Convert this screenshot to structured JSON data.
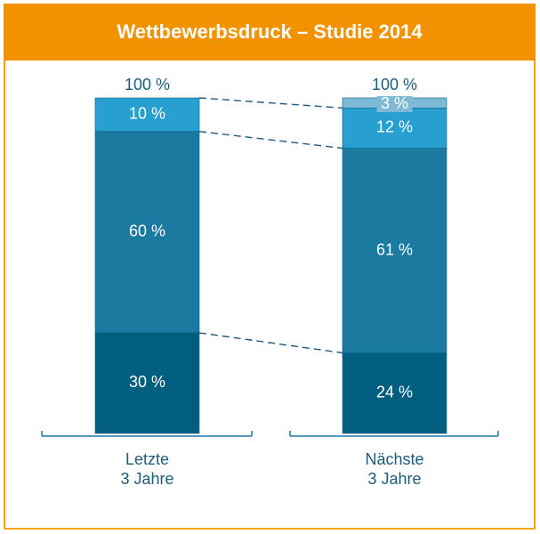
{
  "chart_data": {
    "type": "bar",
    "stacked": true,
    "title": "Wettbewerbsdruck – Studie 2014",
    "categories": [
      {
        "line1": "Letzte",
        "line2": "3 Jahre"
      },
      {
        "line1": "Nächste",
        "line2": "3 Jahre"
      }
    ],
    "totals": [
      "100 %",
      "100 %"
    ],
    "series": [
      {
        "name": "segment-bottom",
        "color": "#005f7f",
        "values": [
          30,
          24
        ],
        "labels": [
          "30 %",
          "24 %"
        ]
      },
      {
        "name": "segment-middle",
        "color": "#1a7aa0",
        "values": [
          60,
          61
        ],
        "labels": [
          "60 %",
          "61 %"
        ]
      },
      {
        "name": "segment-upper",
        "color": "#27a0d0",
        "values": [
          10,
          12
        ],
        "labels": [
          "10 %",
          "12 %"
        ]
      },
      {
        "name": "segment-top",
        "color": "#7eb9d6",
        "values": [
          0,
          3
        ],
        "labels": [
          "",
          "3 %"
        ]
      }
    ],
    "ylim": [
      0,
      100
    ],
    "connector_lines": "dashed"
  },
  "colors": {
    "header": "#f39200",
    "frame": "#f7a21b",
    "axis": "#1a7aa0",
    "text_dark": "#1d5b7a"
  }
}
